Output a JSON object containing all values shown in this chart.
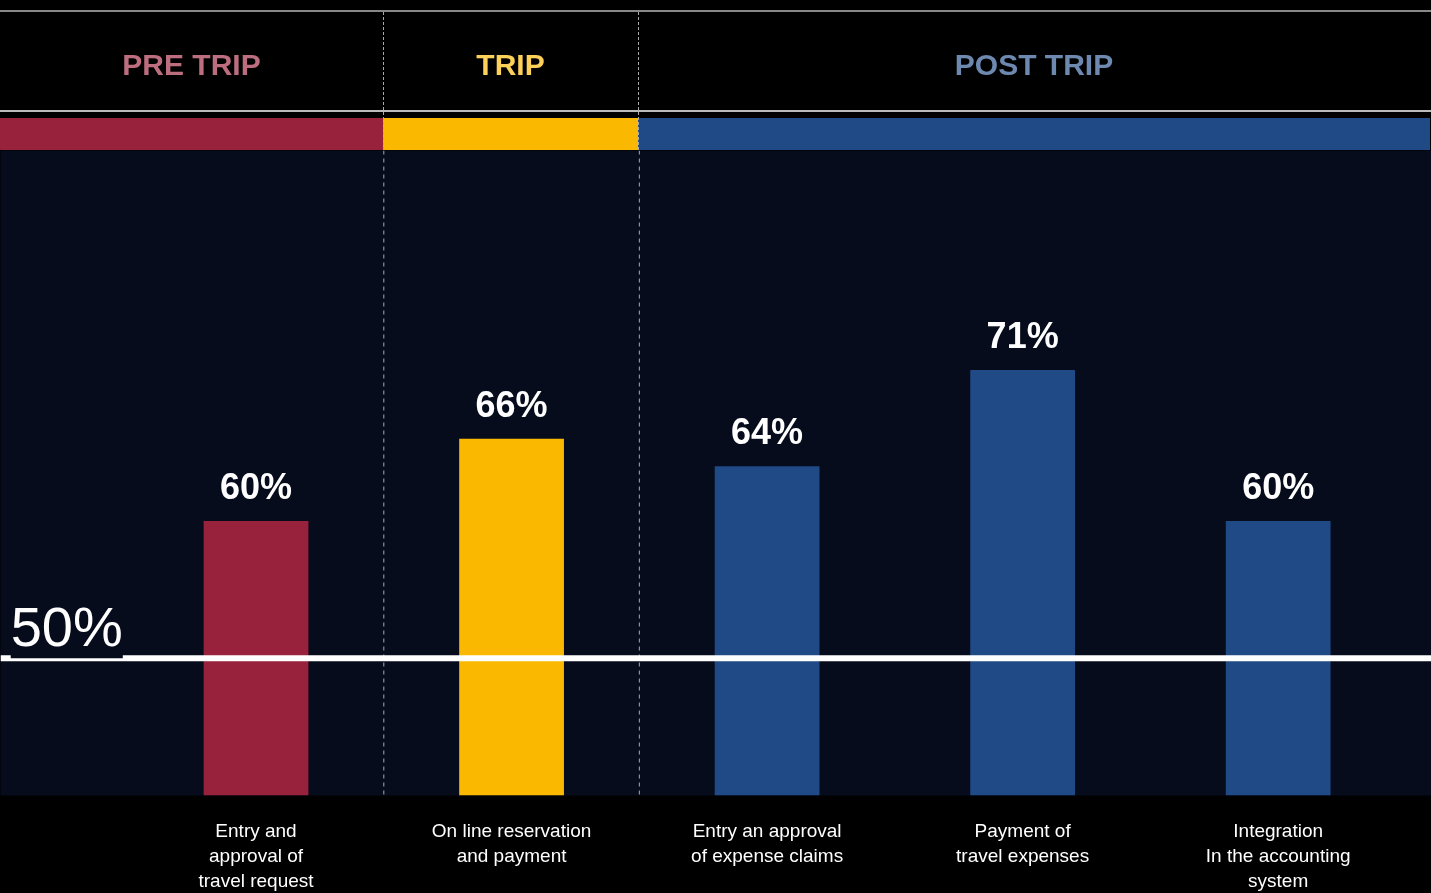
{
  "chart_data": {
    "type": "bar",
    "categories": [
      "Entry and\napproval of\ntravel request",
      "On line reservation\nand payment",
      "Entry an approval\nof expense claims",
      "Payment of\ntravel expenses",
      "Integration\nIn the accounting\nsystem"
    ],
    "values": [
      60,
      66,
      64,
      71,
      60
    ],
    "colors": [
      "#98213b",
      "#fbb800",
      "#1f4a86",
      "#1f4a86",
      "#1f4a86"
    ],
    "value_labels": [
      "60%",
      "66%",
      "64%",
      "71%",
      "60%"
    ],
    "ylim": [
      40,
      87
    ],
    "tick_labels": "x",
    "grid": false,
    "annotations": [
      "PRE TRIP",
      "TRIP",
      "POST TRIP"
    ],
    "ref_lines": [
      {
        "axis": "y",
        "value": 50,
        "label": "50%",
        "color": "#ffffff",
        "line_style": "solid"
      }
    ]
  }
}
